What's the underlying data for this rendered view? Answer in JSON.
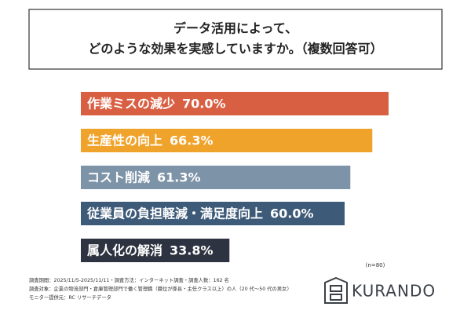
{
  "chart_data": {
    "type": "bar",
    "orientation": "horizontal",
    "title_lines": [
      "データ活用によって、",
      "どのような効果を実感していますか。（複数回答可）"
    ],
    "categories": [
      "作業ミスの減少",
      "生産性の向上",
      "コスト削減",
      "従業員の負担軽減・満足度向上",
      "属人化の解消"
    ],
    "values": [
      70.0,
      66.3,
      61.3,
      60.0,
      33.8
    ],
    "value_labels": [
      "70.0%",
      "66.3%",
      "61.3%",
      "60.0%",
      "33.8%"
    ],
    "colors": [
      "#d95f43",
      "#f0a32a",
      "#7d93a8",
      "#3d5a78",
      "#2d3340"
    ],
    "sample_size": "(n=80)",
    "notes": [
      "調査期間：2025/11/5-2025/11/11・調査方法：インターネット調査・調査人数：162 名",
      "調査対象：企業の物流部門・倉庫管理部門で働く管理職（職位が係長・主任クラス以上）の人（20 代～50 代の男女）",
      "モニター提供元：RC リサーチデータ"
    ],
    "logo": "KURANDO"
  }
}
